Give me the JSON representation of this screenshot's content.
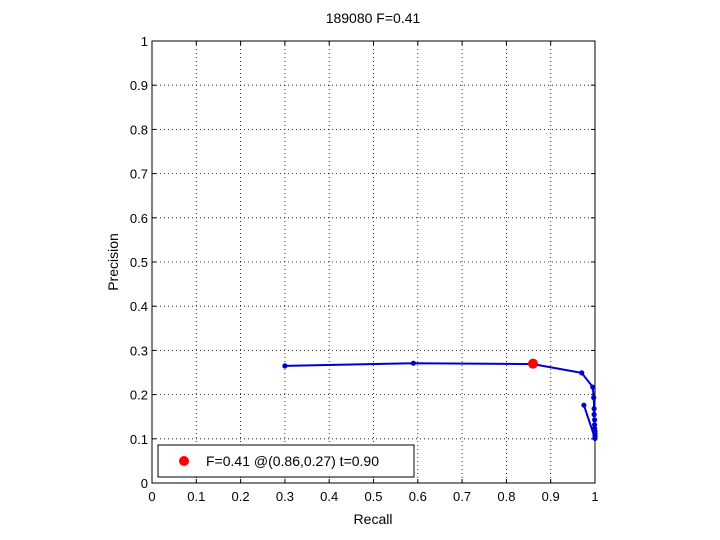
{
  "chart_data": {
    "type": "line",
    "title": "189080 F=0.41",
    "xlabel": "Recall",
    "ylabel": "Precision",
    "xlim": [
      0,
      1
    ],
    "ylim": [
      0,
      1
    ],
    "grid": true,
    "x_ticks": [
      "0",
      "0.1",
      "0.2",
      "0.3",
      "0.4",
      "0.5",
      "0.6",
      "0.7",
      "0.8",
      "0.9",
      "1"
    ],
    "y_ticks": [
      "0",
      "0.1",
      "0.2",
      "0.3",
      "0.4",
      "0.5",
      "0.6",
      "0.7",
      "0.8",
      "0.9",
      "1"
    ],
    "series": [
      {
        "color": "#0000cc",
        "points": [
          [
            0.3,
            0.265
          ],
          [
            0.59,
            0.271
          ],
          [
            0.86,
            0.269
          ],
          [
            0.97,
            0.249
          ],
          [
            0.995,
            0.217
          ],
          [
            0.997,
            0.193
          ],
          [
            0.998,
            0.168
          ],
          [
            0.998,
            0.155
          ],
          [
            0.999,
            0.143
          ],
          [
            0.999,
            0.132
          ],
          [
            0.999,
            0.124
          ],
          [
            1.0,
            0.117
          ],
          [
            1.0,
            0.111
          ],
          [
            1.0,
            0.106
          ],
          [
            1.0,
            0.101
          ],
          [
            0.975,
            0.176
          ]
        ]
      }
    ],
    "highlight": {
      "x": 0.86,
      "y": 0.27,
      "color": "#ff0000"
    },
    "legend": {
      "placement": "bottom-left",
      "label": "F=0.41 @(0.86,0.27) t=0.90"
    }
  }
}
